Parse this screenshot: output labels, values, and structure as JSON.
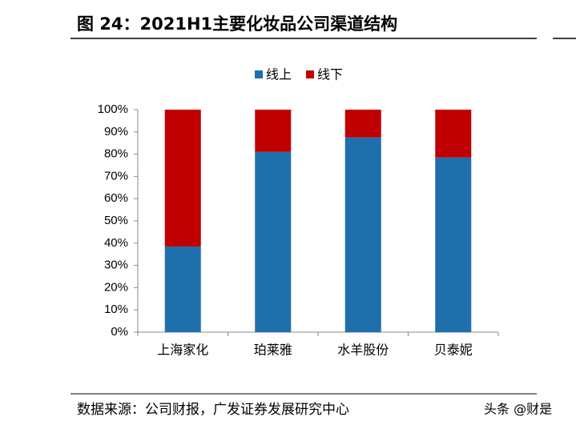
{
  "title": "图 24：2021H1主要化妆品公司渠道结构",
  "chart_data": {
    "type": "stacked_bar",
    "categories": [
      "上海家化",
      "珀莱雅",
      "水羊股份",
      "贝泰妮"
    ],
    "series": [
      {
        "name": "线上",
        "color": "#1f6fad",
        "values": [
          38.5,
          81,
          87.5,
          78.5
        ]
      },
      {
        "name": "线下",
        "color": "#c00000",
        "values": [
          61.5,
          19,
          12.5,
          21.5
        ]
      }
    ],
    "ylim": [
      0,
      100
    ],
    "yticks": [
      {
        "value": 0,
        "label": "0%"
      },
      {
        "value": 10,
        "label": "10%"
      },
      {
        "value": 20,
        "label": "20%"
      },
      {
        "value": 30,
        "label": "30%"
      },
      {
        "value": 40,
        "label": "40%"
      },
      {
        "value": 50,
        "label": "50%"
      },
      {
        "value": 60,
        "label": "60%"
      },
      {
        "value": 70,
        "label": "70%"
      },
      {
        "value": 80,
        "label": "80%"
      },
      {
        "value": 90,
        "label": "90%"
      },
      {
        "value": 100,
        "label": "100%"
      }
    ],
    "legend": "top"
  },
  "source": "数据来源：公司财报，广发证券发展研究中心",
  "watermark": "头条 @财是"
}
